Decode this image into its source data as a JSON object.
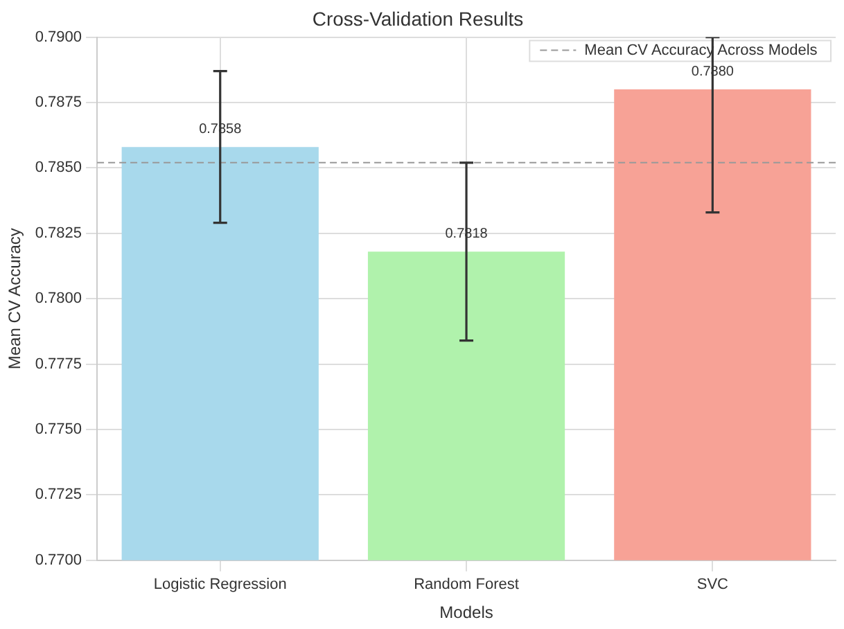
{
  "chart_data": {
    "type": "bar",
    "title": "Cross-Validation Results",
    "xlabel": "Models",
    "ylabel": "Mean CV Accuracy",
    "categories": [
      "Logistic Regression",
      "Random Forest",
      "SVC"
    ],
    "values": [
      0.7858,
      0.7818,
      0.788
    ],
    "colors": [
      "#a8d9ec",
      "#b0f2ac",
      "#f7a296"
    ],
    "errors": [
      0.0029,
      0.0034,
      [
        0.7833,
        0.79
      ]
    ],
    "value_labels": [
      "0.7858",
      "0.7818",
      "0.7880"
    ],
    "ylim": [
      0.77,
      0.79
    ],
    "yticks": [
      {
        "value": 0.77,
        "label": "0.7700"
      },
      {
        "value": 0.7725,
        "label": "0.7725"
      },
      {
        "value": 0.775,
        "label": "0.7750"
      },
      {
        "value": 0.7775,
        "label": "0.7775"
      },
      {
        "value": 0.78,
        "label": "0.7800"
      },
      {
        "value": 0.7825,
        "label": "0.7825"
      },
      {
        "value": 0.785,
        "label": "0.7850"
      },
      {
        "value": 0.7875,
        "label": "0.7875"
      },
      {
        "value": 0.79,
        "label": "0.7900"
      }
    ],
    "ref_lines": [
      {
        "axis": "y",
        "value": 0.7852,
        "label": "Mean CV Accuracy Across Models",
        "color": "#999999",
        "line_style": "dashed"
      }
    ],
    "grid": true,
    "legend": "top right"
  }
}
